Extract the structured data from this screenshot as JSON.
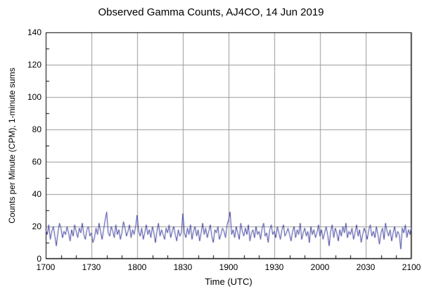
{
  "page": {
    "title": "Observed Gamma Counts, AJ4CO, 14 Jun 2019"
  },
  "chart_data": {
    "type": "line",
    "title": "Observed Gamma Counts, AJ4CO, 14 Jun 2019",
    "xlabel": "Time (UTC)",
    "ylabel": "Counts per Minute (CPM), 1-minute sums",
    "x_tick_labels": [
      "1700",
      "1730",
      "1800",
      "1830",
      "1900",
      "1930",
      "2000",
      "2030",
      "2100"
    ],
    "x_minutes_total": 240,
    "x_major_interval_minutes": 30,
    "x_minor_interval_minutes": 10,
    "ylim": [
      0,
      140
    ],
    "y_major_interval": 20,
    "y_minor_interval": 10,
    "y_tick_labels": [
      "0",
      "20",
      "40",
      "60",
      "80",
      "100",
      "120",
      "140"
    ],
    "grid": true,
    "legend": "none",
    "line_color": "#3b3b9c",
    "grid_color": "#999999",
    "axis_color": "#000000",
    "values": [
      18,
      15,
      21,
      12,
      17,
      20,
      14,
      8,
      16,
      22,
      19,
      13,
      17,
      15,
      20,
      16,
      11,
      18,
      14,
      21,
      17,
      13,
      19,
      16,
      22,
      15,
      12,
      18,
      20,
      14,
      16,
      10,
      13,
      19,
      15,
      22,
      17,
      12,
      18,
      24,
      29,
      16,
      14,
      20,
      17,
      13,
      21,
      15,
      18,
      12,
      16,
      23,
      19,
      14,
      17,
      21,
      13,
      18,
      15,
      20,
      27,
      17,
      14,
      19,
      12,
      16,
      21,
      15,
      18,
      13,
      20,
      16,
      10,
      17,
      22,
      14,
      18,
      15,
      12,
      19,
      16,
      21,
      13,
      17,
      20,
      15,
      11,
      18,
      14,
      16,
      28,
      16,
      13,
      19,
      15,
      21,
      12,
      17,
      20,
      14,
      18,
      11,
      16,
      22,
      15,
      19,
      13,
      17,
      21,
      14,
      10,
      18,
      16,
      20,
      12,
      15,
      19,
      17,
      13,
      21,
      24,
      29,
      15,
      18,
      13,
      20,
      16,
      12,
      22,
      17,
      14,
      19,
      15,
      21,
      11,
      16,
      18,
      13,
      20,
      15,
      17,
      12,
      19,
      22,
      14,
      16,
      10,
      18,
      21,
      15,
      17,
      13,
      20,
      16,
      12,
      18,
      21,
      14,
      16,
      19,
      15,
      11,
      17,
      20,
      13,
      18,
      15,
      22,
      12,
      16,
      19,
      14,
      17,
      10,
      20,
      15,
      18,
      13,
      16,
      21,
      14,
      18,
      12,
      16,
      20,
      15,
      8,
      17,
      21,
      13,
      19,
      16,
      11,
      18,
      14,
      20,
      16,
      22,
      13,
      17,
      15,
      19,
      12,
      16,
      21,
      14,
      18,
      10,
      15,
      19,
      16,
      12,
      18,
      21,
      14,
      17,
      13,
      20,
      15,
      9,
      16,
      19,
      12,
      22,
      17,
      14,
      18,
      11,
      16,
      20,
      13,
      17,
      15,
      6,
      19,
      16,
      21,
      13,
      18,
      15,
      20
    ]
  }
}
